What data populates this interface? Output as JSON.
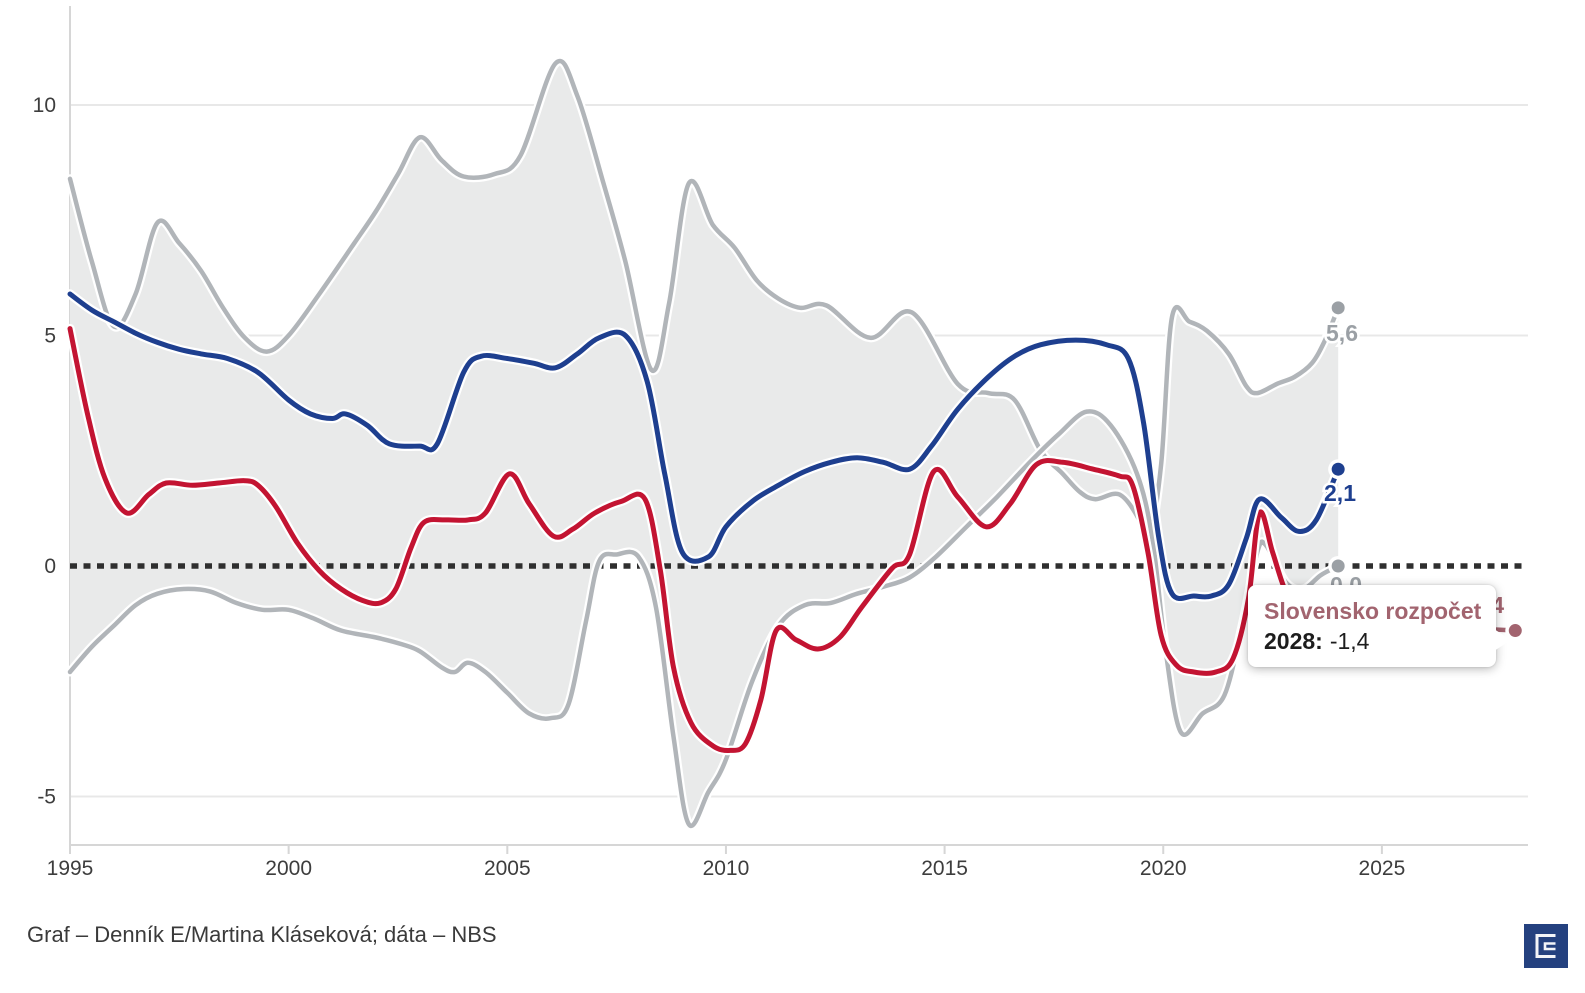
{
  "chart_data": {
    "type": "line",
    "title": "",
    "x_axis": {
      "tick_labels": [
        "1995",
        "2000",
        "2005",
        "2010",
        "2015",
        "2020",
        "2025"
      ],
      "tick_values": [
        1995,
        2000,
        2005,
        2010,
        2015,
        2020,
        2025
      ],
      "min": 1995,
      "max": 2028.4
    },
    "y_axis": {
      "tick_labels": [
        "10",
        "5",
        "0",
        "-5"
      ],
      "tick_values": [
        10,
        5,
        0,
        -5
      ],
      "min": -6.2,
      "max": 12,
      "zero_line": "dotted"
    },
    "band_between": [
      "range_upper",
      "range_lower"
    ],
    "series": [
      {
        "id": "range_upper",
        "name": "range-upper",
        "color": "#b1b5b9",
        "end_label": "5,6",
        "end_year": 2024,
        "end_value": 5.6,
        "points": [
          [
            1995,
            8.4
          ],
          [
            1995.5,
            6.6
          ],
          [
            1996,
            5.2
          ],
          [
            1996.5,
            5.9
          ],
          [
            1997,
            7.45
          ],
          [
            1997.5,
            7.0
          ],
          [
            1998,
            6.4
          ],
          [
            1998.5,
            5.6
          ],
          [
            1999,
            4.95
          ],
          [
            1999.5,
            4.65
          ],
          [
            2000,
            5.0
          ],
          [
            2000.7,
            5.9
          ],
          [
            2001.5,
            7.0
          ],
          [
            2002,
            7.7
          ],
          [
            2002.5,
            8.5
          ],
          [
            2003,
            9.3
          ],
          [
            2003.5,
            8.8
          ],
          [
            2004,
            8.45
          ],
          [
            2004.7,
            8.5
          ],
          [
            2005.3,
            8.9
          ],
          [
            2006.1,
            10.9
          ],
          [
            2006.6,
            10.2
          ],
          [
            2007.2,
            8.3
          ],
          [
            2007.7,
            6.6
          ],
          [
            2008.3,
            4.25
          ],
          [
            2008.7,
            5.7
          ],
          [
            2009.15,
            8.3
          ],
          [
            2009.7,
            7.4
          ],
          [
            2010.2,
            6.9
          ],
          [
            2010.7,
            6.2
          ],
          [
            2011.2,
            5.8
          ],
          [
            2011.7,
            5.6
          ],
          [
            2012.3,
            5.65
          ],
          [
            2013.3,
            4.95
          ],
          [
            2014.25,
            5.5
          ],
          [
            2015.3,
            3.95
          ],
          [
            2016,
            3.75
          ],
          [
            2016.6,
            3.6
          ],
          [
            2017.2,
            2.5
          ],
          [
            2017.7,
            2.0
          ],
          [
            2018.1,
            1.6
          ],
          [
            2018.45,
            1.45
          ],
          [
            2019,
            1.55
          ],
          [
            2019.45,
            1.0
          ],
          [
            2019.65,
            0.4
          ],
          [
            2019.95,
            2.2
          ],
          [
            2020.2,
            5.4
          ],
          [
            2020.6,
            5.3
          ],
          [
            2021,
            5.1
          ],
          [
            2021.5,
            4.6
          ],
          [
            2021.9,
            3.9
          ],
          [
            2022.15,
            3.75
          ],
          [
            2022.6,
            3.95
          ],
          [
            2023,
            4.1
          ],
          [
            2023.4,
            4.4
          ],
          [
            2023.7,
            4.9
          ],
          [
            2024,
            5.6
          ]
        ]
      },
      {
        "id": "range_lower",
        "name": "range-lower",
        "color": "#b1b5b9",
        "end_label": "0,0",
        "end_year": 2024,
        "end_value": 0.0,
        "points": [
          [
            1995,
            -2.3
          ],
          [
            1995.5,
            -1.75
          ],
          [
            1996,
            -1.3
          ],
          [
            1996.5,
            -0.85
          ],
          [
            1997,
            -0.6
          ],
          [
            1997.6,
            -0.5
          ],
          [
            1998.2,
            -0.55
          ],
          [
            1998.8,
            -0.8
          ],
          [
            1999.4,
            -0.95
          ],
          [
            2000,
            -0.95
          ],
          [
            2000.6,
            -1.15
          ],
          [
            2001.2,
            -1.4
          ],
          [
            2002,
            -1.55
          ],
          [
            2002.6,
            -1.7
          ],
          [
            2003,
            -1.85
          ],
          [
            2003.5,
            -2.2
          ],
          [
            2003.8,
            -2.3
          ],
          [
            2004.1,
            -2.1
          ],
          [
            2004.5,
            -2.3
          ],
          [
            2005,
            -2.75
          ],
          [
            2005.5,
            -3.2
          ],
          [
            2006,
            -3.3
          ],
          [
            2006.4,
            -3.0
          ],
          [
            2006.8,
            -1.2
          ],
          [
            2007.1,
            0.1
          ],
          [
            2007.5,
            0.25
          ],
          [
            2008,
            0.2
          ],
          [
            2008.4,
            -0.9
          ],
          [
            2008.8,
            -3.7
          ],
          [
            2009.15,
            -5.6
          ],
          [
            2009.6,
            -4.9
          ],
          [
            2010,
            -4.2
          ],
          [
            2010.6,
            -2.5
          ],
          [
            2011.2,
            -1.3
          ],
          [
            2011.8,
            -0.85
          ],
          [
            2012.4,
            -0.8
          ],
          [
            2013,
            -0.6
          ],
          [
            2013.6,
            -0.45
          ],
          [
            2014.2,
            -0.25
          ],
          [
            2014.8,
            0.2
          ],
          [
            2015.5,
            0.85
          ],
          [
            2016.2,
            1.5
          ],
          [
            2017,
            2.3
          ],
          [
            2017.6,
            2.85
          ],
          [
            2018.25,
            3.35
          ],
          [
            2018.8,
            3.05
          ],
          [
            2019.4,
            2.0
          ],
          [
            2019.75,
            0.6
          ],
          [
            2020.05,
            -1.8
          ],
          [
            2020.4,
            -3.6
          ],
          [
            2020.9,
            -3.2
          ],
          [
            2021.4,
            -2.8
          ],
          [
            2021.8,
            -1.3
          ],
          [
            2022.15,
            0.3
          ],
          [
            2022.35,
            0.45
          ],
          [
            2022.8,
            -0.35
          ],
          [
            2023.2,
            -0.5
          ],
          [
            2023.6,
            -0.2
          ],
          [
            2024,
            0.0
          ]
        ]
      },
      {
        "id": "blue_line",
        "name": "blue-line",
        "color": "#1e3f8f",
        "end_label": "2,1",
        "end_year": 2024,
        "end_value": 2.1,
        "points": [
          [
            1995,
            5.9
          ],
          [
            1995.5,
            5.55
          ],
          [
            1996,
            5.3
          ],
          [
            1996.5,
            5.05
          ],
          [
            1997,
            4.85
          ],
          [
            1997.5,
            4.7
          ],
          [
            1998,
            4.6
          ],
          [
            1998.6,
            4.5
          ],
          [
            1999.3,
            4.2
          ],
          [
            2000,
            3.6
          ],
          [
            2000.5,
            3.3
          ],
          [
            2001,
            3.2
          ],
          [
            2001.3,
            3.3
          ],
          [
            2001.8,
            3.05
          ],
          [
            2002.3,
            2.65
          ],
          [
            2003,
            2.6
          ],
          [
            2003.4,
            2.65
          ],
          [
            2004,
            4.2
          ],
          [
            2004.4,
            4.55
          ],
          [
            2005,
            4.5
          ],
          [
            2005.6,
            4.4
          ],
          [
            2006.1,
            4.3
          ],
          [
            2006.6,
            4.6
          ],
          [
            2007.1,
            4.95
          ],
          [
            2007.7,
            5.0
          ],
          [
            2008.2,
            4.0
          ],
          [
            2008.6,
            2.0
          ],
          [
            2009,
            0.3
          ],
          [
            2009.6,
            0.2
          ],
          [
            2010,
            0.85
          ],
          [
            2010.6,
            1.4
          ],
          [
            2011.2,
            1.75
          ],
          [
            2011.8,
            2.05
          ],
          [
            2012.4,
            2.25
          ],
          [
            2013,
            2.35
          ],
          [
            2013.6,
            2.25
          ],
          [
            2014.2,
            2.1
          ],
          [
            2014.7,
            2.6
          ],
          [
            2015.3,
            3.4
          ],
          [
            2016,
            4.1
          ],
          [
            2016.6,
            4.55
          ],
          [
            2017.2,
            4.8
          ],
          [
            2018,
            4.9
          ],
          [
            2018.7,
            4.8
          ],
          [
            2019.2,
            4.5
          ],
          [
            2019.55,
            3.1
          ],
          [
            2019.9,
            0.6
          ],
          [
            2020.2,
            -0.6
          ],
          [
            2020.7,
            -0.65
          ],
          [
            2021.1,
            -0.65
          ],
          [
            2021.5,
            -0.4
          ],
          [
            2021.9,
            0.6
          ],
          [
            2022.2,
            1.45
          ],
          [
            2022.7,
            1.05
          ],
          [
            2023.1,
            0.75
          ],
          [
            2023.5,
            1.0
          ],
          [
            2024,
            2.1
          ]
        ]
      },
      {
        "id": "slovensko_rozpocet",
        "name": "slovensko-rozpocet-line",
        "color": "#c31432",
        "forecast_color": "#a2646f",
        "end_label": "-1,4",
        "end_year": 2028.05,
        "end_value": -1.4,
        "points": [
          [
            1995,
            5.15
          ],
          [
            1995.4,
            3.3
          ],
          [
            1995.8,
            1.9
          ],
          [
            1996.3,
            1.15
          ],
          [
            1996.8,
            1.55
          ],
          [
            1997.2,
            1.8
          ],
          [
            1997.8,
            1.75
          ],
          [
            1998.4,
            1.8
          ],
          [
            1999,
            1.85
          ],
          [
            1999.3,
            1.75
          ],
          [
            1999.7,
            1.3
          ],
          [
            2000.2,
            0.5
          ],
          [
            2000.7,
            -0.1
          ],
          [
            2001.2,
            -0.5
          ],
          [
            2001.7,
            -0.75
          ],
          [
            2002.1,
            -0.8
          ],
          [
            2002.45,
            -0.5
          ],
          [
            2002.8,
            0.4
          ],
          [
            2003.1,
            0.95
          ],
          [
            2003.6,
            1.0
          ],
          [
            2004.1,
            1.0
          ],
          [
            2004.5,
            1.15
          ],
          [
            2005.05,
            2.0
          ],
          [
            2005.5,
            1.35
          ],
          [
            2006.05,
            0.65
          ],
          [
            2006.5,
            0.8
          ],
          [
            2007,
            1.15
          ],
          [
            2007.6,
            1.4
          ],
          [
            2008.15,
            1.45
          ],
          [
            2008.5,
            -0.1
          ],
          [
            2008.8,
            -2.2
          ],
          [
            2009.2,
            -3.4
          ],
          [
            2009.7,
            -3.9
          ],
          [
            2010.1,
            -4.0
          ],
          [
            2010.45,
            -3.85
          ],
          [
            2010.8,
            -2.9
          ],
          [
            2011.15,
            -1.4
          ],
          [
            2011.6,
            -1.6
          ],
          [
            2012.1,
            -1.8
          ],
          [
            2012.6,
            -1.55
          ],
          [
            2013.1,
            -0.9
          ],
          [
            2013.8,
            -0.05
          ],
          [
            2014.2,
            0.25
          ],
          [
            2014.75,
            2.05
          ],
          [
            2015.3,
            1.5
          ],
          [
            2015.95,
            0.85
          ],
          [
            2016.5,
            1.35
          ],
          [
            2017.1,
            2.2
          ],
          [
            2017.7,
            2.25
          ],
          [
            2018.4,
            2.1
          ],
          [
            2019,
            1.95
          ],
          [
            2019.3,
            1.75
          ],
          [
            2019.65,
            0.3
          ],
          [
            2019.95,
            -1.5
          ],
          [
            2020.3,
            -2.15
          ],
          [
            2020.7,
            -2.3
          ],
          [
            2021.2,
            -2.3
          ],
          [
            2021.6,
            -2.0
          ],
          [
            2021.95,
            -0.7
          ],
          [
            2022.2,
            1.15
          ],
          [
            2022.5,
            0.3
          ],
          [
            2022.8,
            -0.55
          ],
          [
            2023.1,
            -0.85
          ]
        ],
        "forecast_points": [
          [
            2023.1,
            -0.85
          ],
          [
            2023.8,
            -1.1
          ],
          [
            2024.8,
            -1.2
          ],
          [
            2026,
            -1.3
          ],
          [
            2027,
            -1.35
          ],
          [
            2028.05,
            -1.4
          ]
        ]
      }
    ],
    "colors": {
      "band_fill": "#e9eaea",
      "grid": "#e8e8e8",
      "axis_line": "#d6d6d6",
      "zero_line": "#2f2f2f",
      "tick_text": "#3d3d3d",
      "grey_label": "#9ba0a5",
      "blue": "#1e3f8f",
      "red": "#c31432",
      "maroon": "#a2646f"
    }
  },
  "tooltip": {
    "title": "Slovensko rozpočet",
    "year_label": "2028:",
    "value": "-1,4"
  },
  "source_note": "Graf – Denník E/Martina Kláseková; dáta – NBS",
  "logo": {
    "name": "Denník E",
    "color": "#24417f"
  }
}
